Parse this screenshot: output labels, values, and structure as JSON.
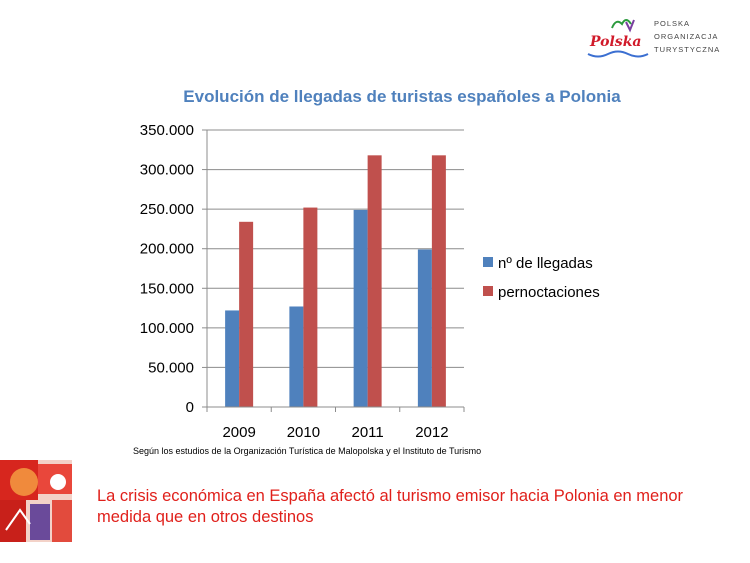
{
  "logo": {
    "brand": "Polska",
    "lines": [
      "POLSKA",
      "ORGANIZACJA",
      "TURYSTYCZNA"
    ]
  },
  "chart_data": {
    "type": "bar",
    "title": "Evolución de llegadas de turistas españoles a Polonia",
    "categories": [
      "2009",
      "2010",
      "2011",
      "2012"
    ],
    "series": [
      {
        "name": "nº de llegadas",
        "values": [
          122000,
          127000,
          249000,
          199000
        ],
        "color": "#4f81bd"
      },
      {
        "name": "pernoctaciones",
        "values": [
          234000,
          252000,
          318000,
          318000
        ],
        "color": "#c0504d"
      }
    ],
    "yticks": [
      "0",
      "50.000",
      "100.000",
      "150.000",
      "200.000",
      "250.000",
      "300.000",
      "350.000"
    ],
    "ylim": [
      0,
      350000
    ],
    "grid": true,
    "legend_position": "right"
  },
  "source_note": "Según los estudios de la Organización Turística de Malopolska y el Instituto de Turismo",
  "caption": "La crisis económica en España afectó  al turismo emisor hacia Polonia en menor medida que en otros destinos"
}
